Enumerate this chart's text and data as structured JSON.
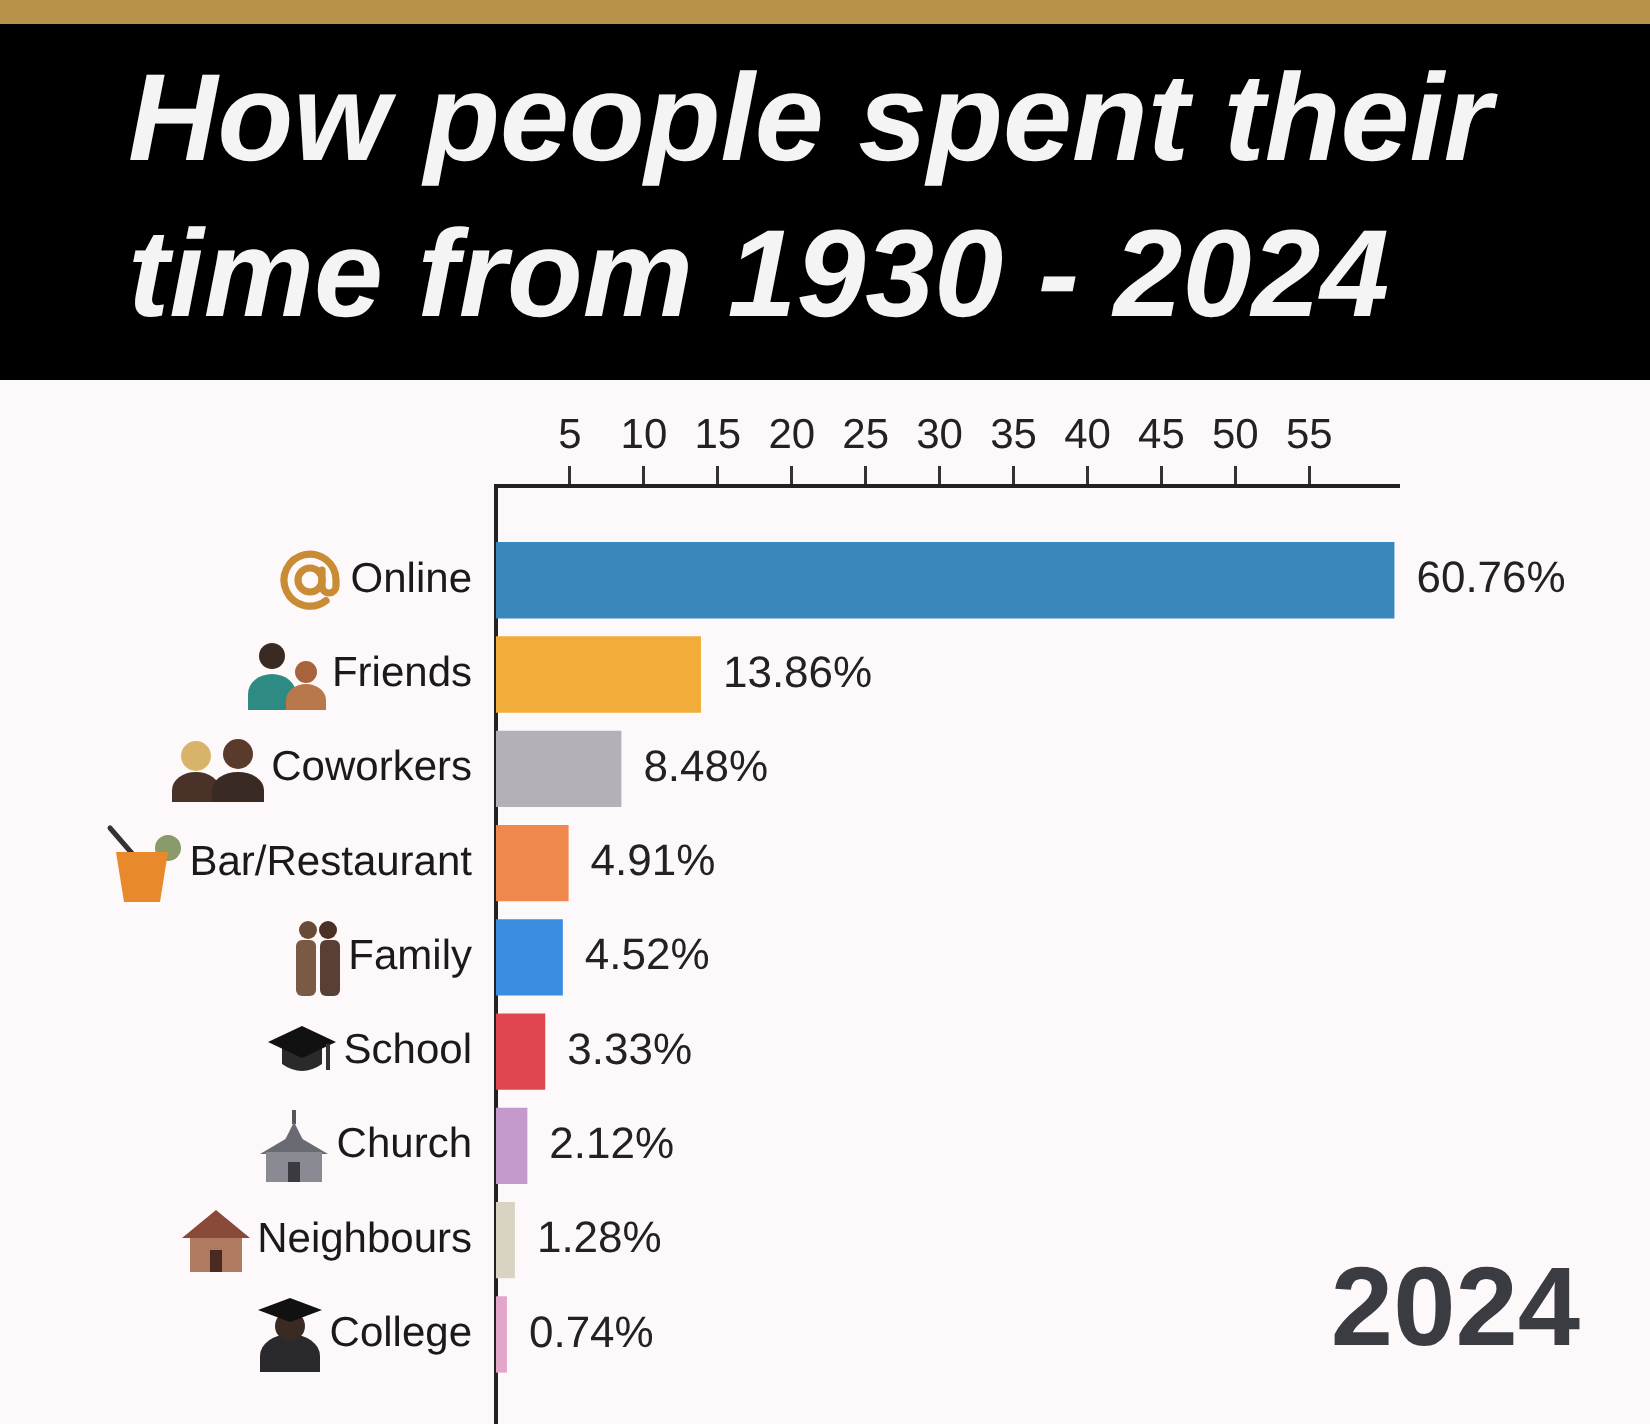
{
  "chart_data": {
    "type": "bar",
    "orientation": "horizontal",
    "title": "How people spent their time from 1930 - 2024",
    "categories": [
      "Online",
      "Friends",
      "Coworkers",
      "Bar/Restaurant",
      "Family",
      "School",
      "Church",
      "Neighbours",
      "College"
    ],
    "values": [
      60.76,
      13.86,
      8.48,
      4.91,
      4.52,
      3.33,
      2.12,
      1.28,
      0.74
    ],
    "colors": [
      "#3b86ba",
      "#f2ac3a",
      "#b5b0b8",
      "#f0884e",
      "#3a8ce0",
      "#e04650",
      "#c49acc",
      "#d9d3c3",
      "#e3a6c8"
    ],
    "value_labels": [
      "60.76%",
      "13.86%",
      "8.48%",
      "4.91%",
      "4.52%",
      "3.33%",
      "2.12%",
      "1.28%",
      "0.74%"
    ],
    "xlim": [
      0,
      61
    ],
    "xticks": [
      5,
      10,
      15,
      20,
      25,
      30,
      35,
      40,
      45,
      50,
      55
    ],
    "annotations": [
      "2024"
    ]
  }
}
